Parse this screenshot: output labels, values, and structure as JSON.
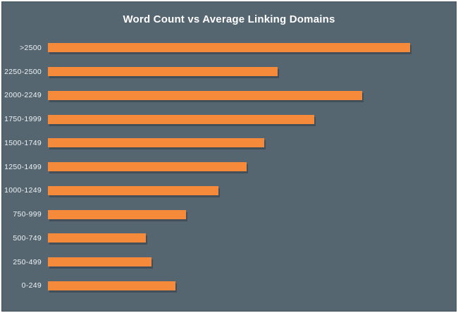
{
  "chart_data": {
    "type": "bar",
    "orientation": "horizontal",
    "title": "Word Count vs Average Linking Domains",
    "categories": [
      ">2500",
      "2250-2500",
      "2000-2249",
      "1750-1999",
      "1500-1749",
      "1250-1499",
      "1000-1249",
      "750-999",
      "500-749",
      "250-499",
      "0-249"
    ],
    "values": [
      9.82,
      6.23,
      8.53,
      7.22,
      5.87,
      5.39,
      4.63,
      3.75,
      2.66,
      2.82,
      3.47
    ],
    "xlabel": "",
    "ylabel": "",
    "xlim": [
      0,
      10
    ],
    "axis_ticks_visible": false,
    "grid": false,
    "legend": false,
    "colors": {
      "background": "#556671",
      "bar": "#f68a3b",
      "title_text": "#ffffff",
      "label_text": "#eef2f4",
      "outer_margin": "#ffffff"
    }
  }
}
